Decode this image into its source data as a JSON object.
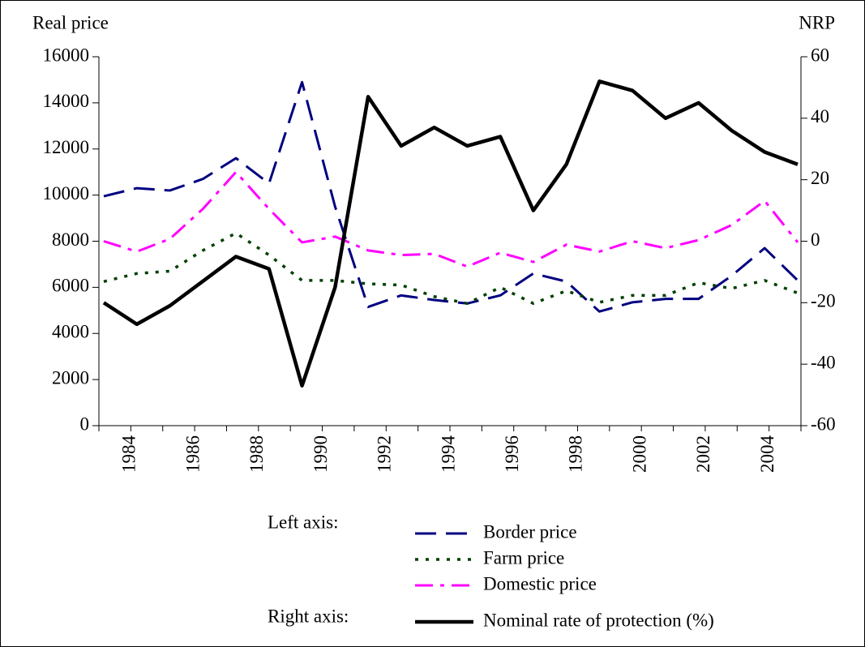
{
  "chart_data": {
    "type": "line",
    "y_label": "Real price",
    "y2_label": "NRP",
    "legend_left_label": "Left axis:",
    "legend_right_label": "Right axis:",
    "categories": [
      "1984",
      null,
      "1986",
      null,
      "1988",
      null,
      "1990",
      null,
      "1992",
      null,
      "1994",
      null,
      "1996",
      null,
      "1998",
      null,
      "2000",
      null,
      "2002",
      null,
      "2004",
      null
    ],
    "ylim": [
      0,
      16000
    ],
    "yticks": [
      0,
      2000,
      4000,
      6000,
      8000,
      10000,
      12000,
      14000,
      16000
    ],
    "y2lim": [
      -60,
      60
    ],
    "y2ticks": [
      -60,
      -40,
      -20,
      0,
      20,
      40,
      60
    ],
    "series": [
      {
        "name": "Border price",
        "color": "#000080",
        "dash": "dashed",
        "values": [
          9950,
          10300,
          10200,
          10700,
          11600,
          10500,
          14900,
          9500,
          5150,
          5650,
          5450,
          5300,
          5650,
          6600,
          6250,
          4950,
          5350,
          5500,
          5500,
          6500,
          7700,
          6300
        ]
      },
      {
        "name": "Farm price",
        "color": "#004000",
        "dash": "dotted",
        "values": [
          6250,
          6600,
          6700,
          7600,
          8350,
          7400,
          6300,
          6300,
          6150,
          6100,
          5600,
          5300,
          6000,
          5300,
          5850,
          5350,
          5650,
          5650,
          6200,
          5950,
          6300,
          5750
        ]
      },
      {
        "name": "Domestic price",
        "color": "#ff00ff",
        "dash": "dashdot",
        "values": [
          8000,
          7550,
          8100,
          9400,
          11000,
          9400,
          7950,
          8200,
          7600,
          7400,
          7450,
          6900,
          7500,
          7100,
          7850,
          7550,
          8000,
          7700,
          8050,
          8700,
          9750,
          7950
        ]
      },
      {
        "name": "Nominal rate of protection (%)",
        "color": "#000000",
        "dash": "solid",
        "axis": "y2",
        "values": [
          -20,
          -27,
          -21,
          -13,
          -5,
          -9,
          -47,
          -15,
          47,
          31,
          37,
          31,
          34,
          10,
          25,
          52,
          49,
          40,
          45,
          36,
          29,
          25
        ]
      }
    ]
  }
}
